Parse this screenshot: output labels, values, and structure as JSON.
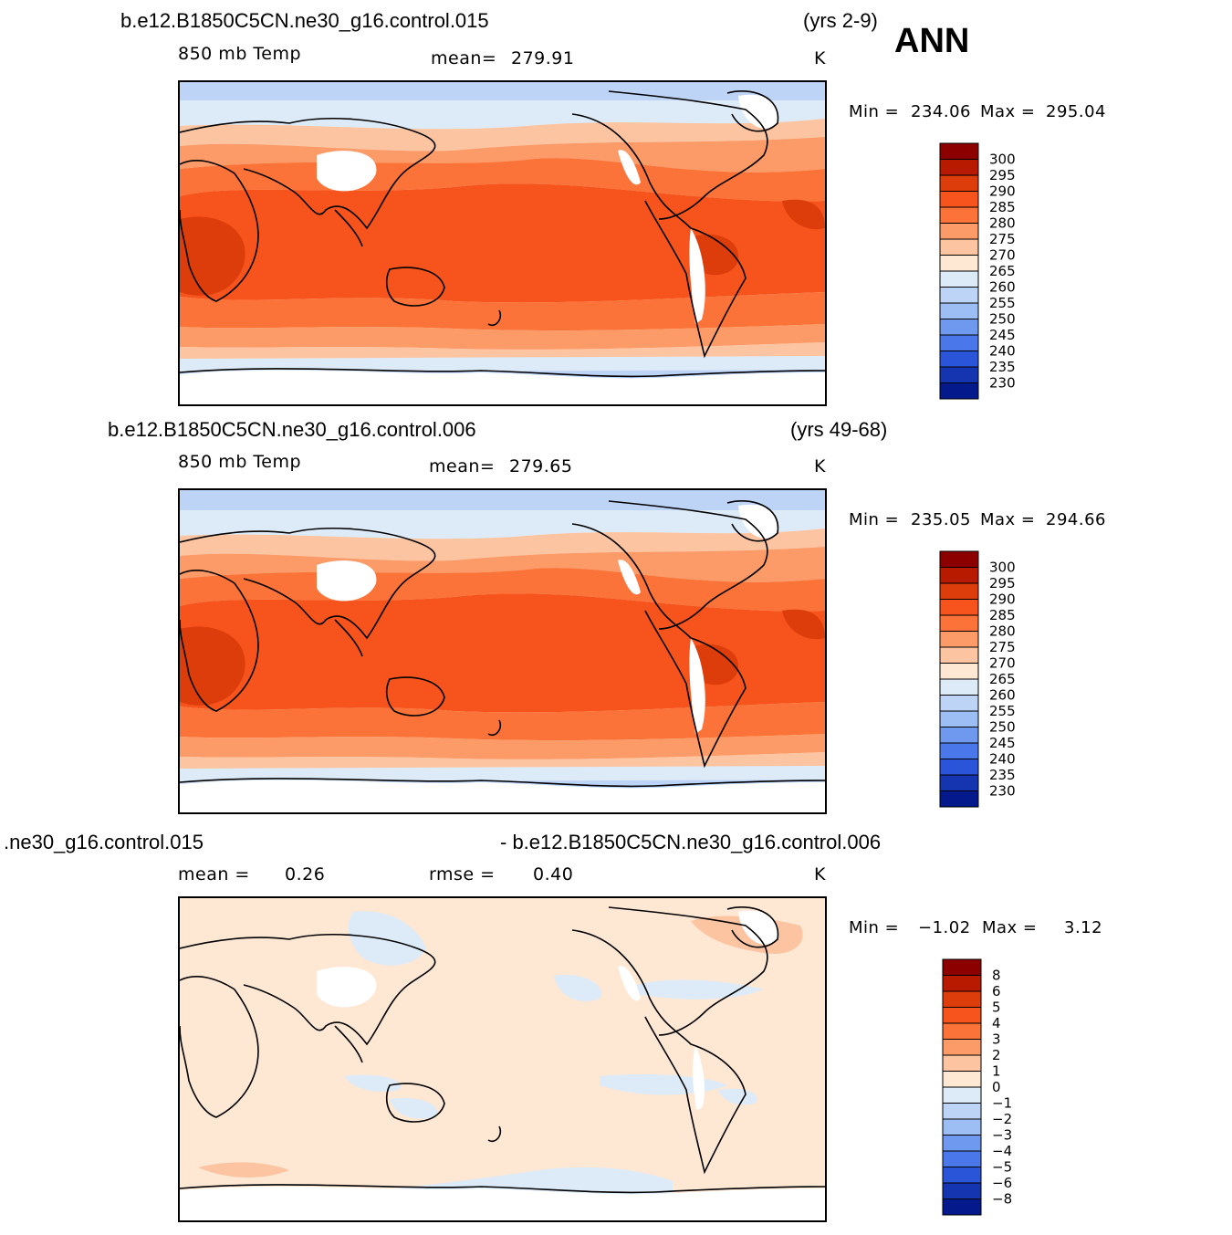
{
  "season_label": "ANN",
  "panels": [
    {
      "case": "b.e12.B1850C5CN.ne30_g16.control.015",
      "years": "(yrs 2-9)",
      "variable": "850 mb Temp",
      "stat_label": "mean=",
      "stat_value": "279.91",
      "units": "K",
      "min_label": "Min =",
      "min_value": "234.06",
      "max_label": "Max =",
      "max_value": "295.04",
      "colorbar_levels": [
        "300",
        "295",
        "290",
        "285",
        "280",
        "275",
        "270",
        "265",
        "260",
        "255",
        "250",
        "245",
        "240",
        "235",
        "230"
      ],
      "colorbar_colors": [
        "#8c0000",
        "#b81a00",
        "#dd3d0a",
        "#f6541c",
        "#fb7338",
        "#fc9b68",
        "#fdc4a1",
        "#fee7d3",
        "#ddebf9",
        "#bdd4f7",
        "#9cbef5",
        "#6e99ee",
        "#4a78ea",
        "#2b55d8",
        "#1535b0",
        "#041a8c"
      ]
    },
    {
      "case": "b.e12.B1850C5CN.ne30_g16.control.006",
      "years": "(yrs 49-68)",
      "variable": "850 mb Temp",
      "stat_label": "mean=",
      "stat_value": "279.65",
      "units": "K",
      "min_label": "Min =",
      "min_value": "235.05",
      "max_label": "Max =",
      "max_value": "294.66",
      "colorbar_levels": [
        "300",
        "295",
        "290",
        "285",
        "280",
        "275",
        "270",
        "265",
        "260",
        "255",
        "250",
        "245",
        "240",
        "235",
        "230"
      ],
      "colorbar_colors": [
        "#8c0000",
        "#b81a00",
        "#dd3d0a",
        "#f6541c",
        "#fb7338",
        "#fc9b68",
        "#fdc4a1",
        "#fee7d3",
        "#ddebf9",
        "#bdd4f7",
        "#9cbef5",
        "#6e99ee",
        "#4a78ea",
        "#2b55d8",
        "#1535b0",
        "#041a8c"
      ]
    },
    {
      "case_left": ".ne30_g16.control.015",
      "case_right": "- b.e12.B1850C5CN.ne30_g16.control.006",
      "stat_label": "mean =",
      "stat_value": "0.26",
      "rmse_label": "rmse =",
      "rmse_value": "0.40",
      "units": "K",
      "min_label": "Min =",
      "min_value": "−1.02",
      "max_label": "Max =",
      "max_value": "3.12",
      "colorbar_levels": [
        "8",
        "6",
        "5",
        "4",
        "3",
        "2",
        "1",
        "0",
        "−1",
        "−2",
        "−3",
        "−4",
        "−5",
        "−6",
        "−8"
      ],
      "colorbar_colors": [
        "#8c0000",
        "#b81a00",
        "#dd3d0a",
        "#f6541c",
        "#fb7338",
        "#fc9b68",
        "#fdc4a1",
        "#fee7d3",
        "#ddebf9",
        "#bdd4f7",
        "#9cbef5",
        "#6e99ee",
        "#4a78ea",
        "#2b55d8",
        "#1535b0",
        "#041a8c"
      ]
    }
  ]
}
